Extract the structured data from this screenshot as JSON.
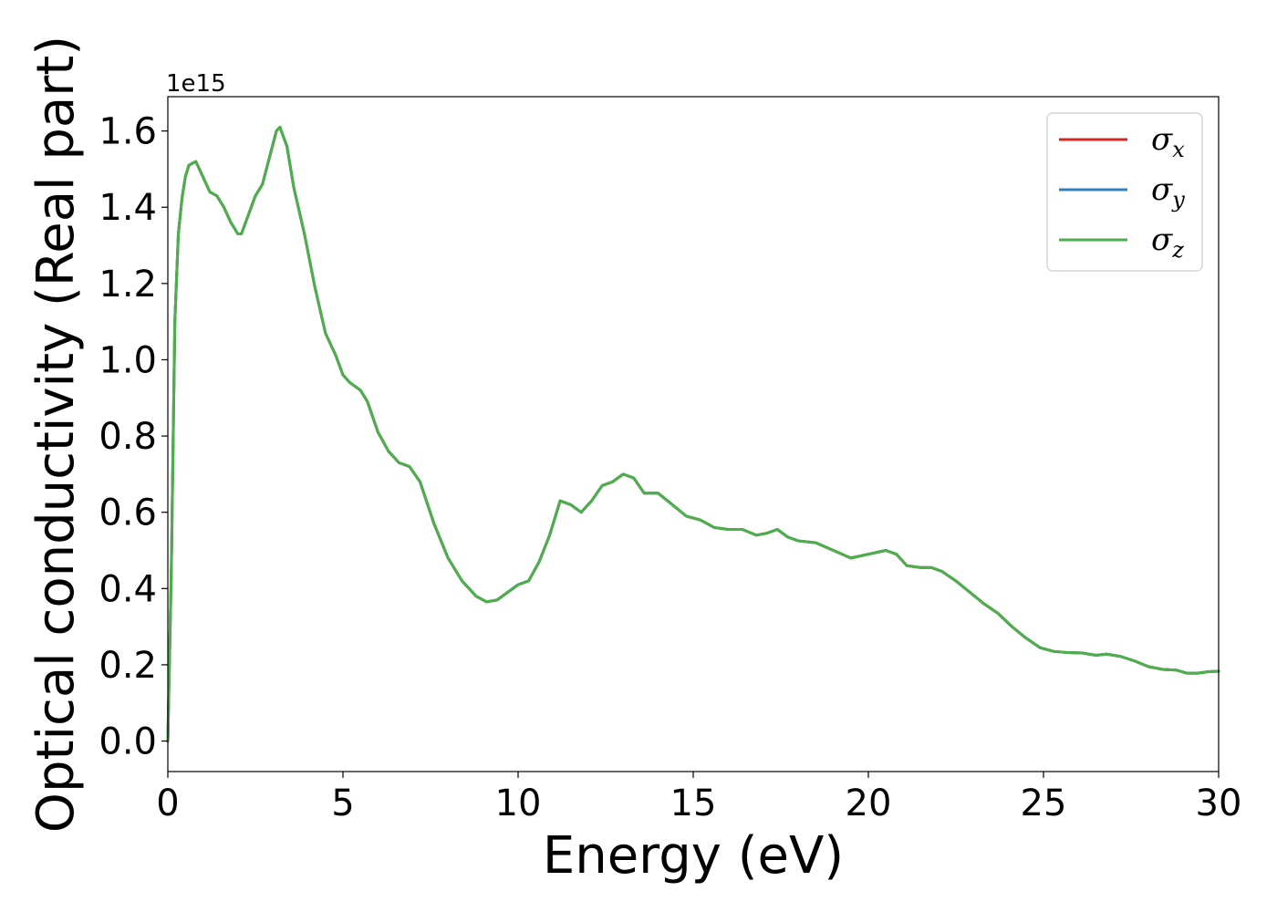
{
  "chart_data": {
    "type": "line",
    "title": "",
    "xlabel": "Energy (eV)",
    "ylabel": "Optical conductivity (Real part)",
    "y_offset_label": "1e15",
    "y_scale": 1000000000000000.0,
    "xlim": [
      0,
      30
    ],
    "ylim": [
      -0.08,
      1.69
    ],
    "x_ticks": [
      0,
      5,
      10,
      15,
      20,
      25,
      30
    ],
    "x_tick_labels": [
      "0",
      "5",
      "10",
      "15",
      "20",
      "25",
      "30"
    ],
    "y_ticks": [
      0.0,
      0.2,
      0.4,
      0.6,
      0.8,
      1.0,
      1.2,
      1.4,
      1.6
    ],
    "y_tick_labels": [
      "0.0",
      "0.2",
      "0.4",
      "0.6",
      "0.8",
      "1.0",
      "1.2",
      "1.4",
      "1.6"
    ],
    "grid": false,
    "legend_position": "top-right",
    "series": [
      {
        "name": "σx",
        "symbol": "σ",
        "subscript": "x",
        "color": "#d62728",
        "x": [
          0,
          0.1,
          0.2,
          0.3,
          0.4,
          0.5,
          0.6,
          0.8,
          1.0,
          1.2,
          1.4,
          1.6,
          1.8,
          2.0,
          2.1,
          2.3,
          2.5,
          2.7,
          2.9,
          3.1,
          3.2,
          3.4,
          3.6,
          3.9,
          4.2,
          4.5,
          4.8,
          5.0,
          5.2,
          5.5,
          5.7,
          6.0,
          6.3,
          6.6,
          6.9,
          7.2,
          7.6,
          8.0,
          8.4,
          8.8,
          9.1,
          9.4,
          9.7,
          10.0,
          10.3,
          10.6,
          10.9,
          11.2,
          11.5,
          11.8,
          12.1,
          12.4,
          12.7,
          13.0,
          13.3,
          13.6,
          14.0,
          14.4,
          14.8,
          15.2,
          15.6,
          16.0,
          16.4,
          16.8,
          17.1,
          17.4,
          17.7,
          18.0,
          18.5,
          19.0,
          19.5,
          20.0,
          20.5,
          20.8,
          21.1,
          21.5,
          21.8,
          22.1,
          22.5,
          22.9,
          23.3,
          23.7,
          24.1,
          24.5,
          24.9,
          25.3,
          25.7,
          26.1,
          26.5,
          26.8,
          27.2,
          27.6,
          28.0,
          28.4,
          28.8,
          29.1,
          29.4,
          29.7,
          30.0
        ],
        "y": [
          0,
          0.45,
          1.1,
          1.33,
          1.42,
          1.48,
          1.51,
          1.52,
          1.48,
          1.44,
          1.43,
          1.4,
          1.36,
          1.33,
          1.33,
          1.38,
          1.43,
          1.46,
          1.53,
          1.6,
          1.61,
          1.56,
          1.45,
          1.33,
          1.19,
          1.07,
          1.01,
          0.96,
          0.94,
          0.92,
          0.89,
          0.81,
          0.76,
          0.73,
          0.72,
          0.68,
          0.57,
          0.48,
          0.42,
          0.38,
          0.365,
          0.37,
          0.39,
          0.41,
          0.42,
          0.47,
          0.54,
          0.63,
          0.62,
          0.6,
          0.63,
          0.67,
          0.68,
          0.7,
          0.69,
          0.65,
          0.65,
          0.62,
          0.59,
          0.58,
          0.56,
          0.555,
          0.555,
          0.54,
          0.545,
          0.555,
          0.535,
          0.525,
          0.52,
          0.5,
          0.48,
          0.49,
          0.5,
          0.49,
          0.46,
          0.455,
          0.455,
          0.445,
          0.42,
          0.39,
          0.36,
          0.335,
          0.3,
          0.27,
          0.245,
          0.235,
          0.232,
          0.231,
          0.225,
          0.228,
          0.222,
          0.21,
          0.195,
          0.188,
          0.186,
          0.178,
          0.178,
          0.182,
          0.183
        ]
      },
      {
        "name": "σy",
        "symbol": "σ",
        "subscript": "y",
        "color": "#377eb8",
        "x": [
          0,
          0.1,
          0.2,
          0.3,
          0.4,
          0.5,
          0.6,
          0.8,
          1.0,
          1.2,
          1.4,
          1.6,
          1.8,
          2.0,
          2.1,
          2.3,
          2.5,
          2.7,
          2.9,
          3.1,
          3.2,
          3.4,
          3.6,
          3.9,
          4.2,
          4.5,
          4.8,
          5.0,
          5.2,
          5.5,
          5.7,
          6.0,
          6.3,
          6.6,
          6.9,
          7.2,
          7.6,
          8.0,
          8.4,
          8.8,
          9.1,
          9.4,
          9.7,
          10.0,
          10.3,
          10.6,
          10.9,
          11.2,
          11.5,
          11.8,
          12.1,
          12.4,
          12.7,
          13.0,
          13.3,
          13.6,
          14.0,
          14.4,
          14.8,
          15.2,
          15.6,
          16.0,
          16.4,
          16.8,
          17.1,
          17.4,
          17.7,
          18.0,
          18.5,
          19.0,
          19.5,
          20.0,
          20.5,
          20.8,
          21.1,
          21.5,
          21.8,
          22.1,
          22.5,
          22.9,
          23.3,
          23.7,
          24.1,
          24.5,
          24.9,
          25.3,
          25.7,
          26.1,
          26.5,
          26.8,
          27.2,
          27.6,
          28.0,
          28.4,
          28.8,
          29.1,
          29.4,
          29.7,
          30.0
        ],
        "y": [
          0,
          0.45,
          1.1,
          1.33,
          1.42,
          1.48,
          1.51,
          1.52,
          1.48,
          1.44,
          1.43,
          1.4,
          1.36,
          1.33,
          1.33,
          1.38,
          1.43,
          1.46,
          1.53,
          1.6,
          1.61,
          1.56,
          1.45,
          1.33,
          1.19,
          1.07,
          1.01,
          0.96,
          0.94,
          0.92,
          0.89,
          0.81,
          0.76,
          0.73,
          0.72,
          0.68,
          0.57,
          0.48,
          0.42,
          0.38,
          0.365,
          0.37,
          0.39,
          0.41,
          0.42,
          0.47,
          0.54,
          0.63,
          0.62,
          0.6,
          0.63,
          0.67,
          0.68,
          0.7,
          0.69,
          0.65,
          0.65,
          0.62,
          0.59,
          0.58,
          0.56,
          0.555,
          0.555,
          0.54,
          0.545,
          0.555,
          0.535,
          0.525,
          0.52,
          0.5,
          0.48,
          0.49,
          0.5,
          0.49,
          0.46,
          0.455,
          0.455,
          0.445,
          0.42,
          0.39,
          0.36,
          0.335,
          0.3,
          0.27,
          0.245,
          0.235,
          0.232,
          0.231,
          0.225,
          0.228,
          0.222,
          0.21,
          0.195,
          0.188,
          0.186,
          0.178,
          0.178,
          0.182,
          0.183
        ]
      },
      {
        "name": "σz",
        "symbol": "σ",
        "subscript": "z",
        "color": "#4daf4a",
        "x": [
          0,
          0.1,
          0.2,
          0.3,
          0.4,
          0.5,
          0.6,
          0.8,
          1.0,
          1.2,
          1.4,
          1.6,
          1.8,
          2.0,
          2.1,
          2.3,
          2.5,
          2.7,
          2.9,
          3.1,
          3.2,
          3.4,
          3.6,
          3.9,
          4.2,
          4.5,
          4.8,
          5.0,
          5.2,
          5.5,
          5.7,
          6.0,
          6.3,
          6.6,
          6.9,
          7.2,
          7.6,
          8.0,
          8.4,
          8.8,
          9.1,
          9.4,
          9.7,
          10.0,
          10.3,
          10.6,
          10.9,
          11.2,
          11.5,
          11.8,
          12.1,
          12.4,
          12.7,
          13.0,
          13.3,
          13.6,
          14.0,
          14.4,
          14.8,
          15.2,
          15.6,
          16.0,
          16.4,
          16.8,
          17.1,
          17.4,
          17.7,
          18.0,
          18.5,
          19.0,
          19.5,
          20.0,
          20.5,
          20.8,
          21.1,
          21.5,
          21.8,
          22.1,
          22.5,
          22.9,
          23.3,
          23.7,
          24.1,
          24.5,
          24.9,
          25.3,
          25.7,
          26.1,
          26.5,
          26.8,
          27.2,
          27.6,
          28.0,
          28.4,
          28.8,
          29.1,
          29.4,
          29.7,
          30.0
        ],
        "y": [
          0,
          0.45,
          1.1,
          1.33,
          1.42,
          1.48,
          1.51,
          1.52,
          1.48,
          1.44,
          1.43,
          1.4,
          1.36,
          1.33,
          1.33,
          1.38,
          1.43,
          1.46,
          1.53,
          1.6,
          1.61,
          1.56,
          1.45,
          1.33,
          1.19,
          1.07,
          1.01,
          0.96,
          0.94,
          0.92,
          0.89,
          0.81,
          0.76,
          0.73,
          0.72,
          0.68,
          0.57,
          0.48,
          0.42,
          0.38,
          0.365,
          0.37,
          0.39,
          0.41,
          0.42,
          0.47,
          0.54,
          0.63,
          0.62,
          0.6,
          0.63,
          0.67,
          0.68,
          0.7,
          0.69,
          0.65,
          0.65,
          0.62,
          0.59,
          0.58,
          0.56,
          0.555,
          0.555,
          0.54,
          0.545,
          0.555,
          0.535,
          0.525,
          0.52,
          0.5,
          0.48,
          0.49,
          0.5,
          0.49,
          0.46,
          0.455,
          0.455,
          0.445,
          0.42,
          0.39,
          0.36,
          0.335,
          0.3,
          0.27,
          0.245,
          0.235,
          0.232,
          0.231,
          0.225,
          0.228,
          0.222,
          0.21,
          0.195,
          0.188,
          0.186,
          0.178,
          0.178,
          0.182,
          0.183
        ]
      }
    ]
  }
}
